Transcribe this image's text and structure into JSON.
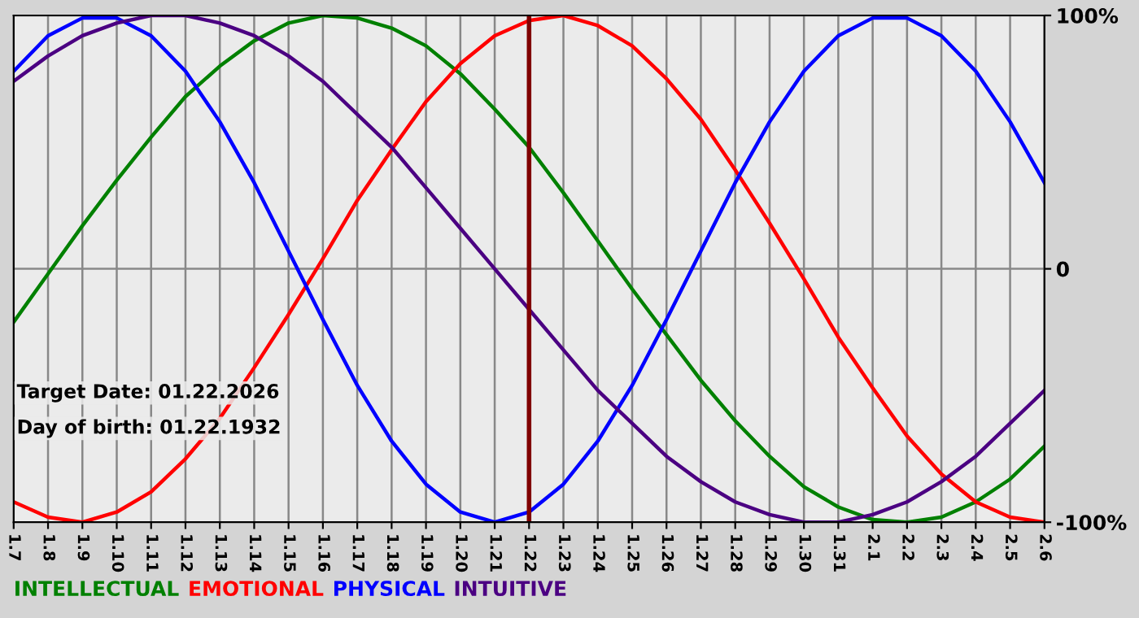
{
  "chart_data": {
    "type": "line",
    "categories": [
      "1.7",
      "1.8",
      "1.9",
      "1.10",
      "1.11",
      "1.12",
      "1.13",
      "1.14",
      "1.15",
      "1.16",
      "1.17",
      "1.18",
      "1.19",
      "1.20",
      "1.21",
      "1.22",
      "1.23",
      "1.24",
      "1.25",
      "1.26",
      "1.27",
      "1.28",
      "1.29",
      "1.30",
      "1.31",
      "2.1",
      "2.2",
      "2.3",
      "2.4",
      "2.5",
      "2.6"
    ],
    "series": [
      {
        "name": "INTELLECTUAL",
        "color": "#008000",
        "values": [
          -21,
          -2,
          17,
          35,
          52,
          68,
          80,
          90,
          97,
          100,
          99,
          95,
          88,
          77,
          63,
          48,
          30,
          11,
          -8,
          -26,
          -44,
          -60,
          -74,
          -86,
          -94,
          -99,
          -100,
          -98,
          -92,
          -83,
          -70
        ]
      },
      {
        "name": "EMOTIONAL",
        "color": "#ff0000",
        "values": [
          -92,
          -98,
          -100,
          -96,
          -88,
          -75,
          -59,
          -39,
          -18,
          4,
          27,
          47,
          66,
          81,
          92,
          98,
          100,
          96,
          88,
          75,
          59,
          39,
          18,
          -4,
          -27,
          -47,
          -66,
          -81,
          -92,
          -98,
          -100
        ]
      },
      {
        "name": "PHYSICAL",
        "color": "#0000ff",
        "values": [
          78,
          92,
          99,
          99,
          92,
          78,
          58,
          34,
          7,
          -20,
          -46,
          -68,
          -85,
          -96,
          -100,
          -96,
          -85,
          -68,
          -46,
          -20,
          7,
          34,
          58,
          78,
          92,
          99,
          99,
          92,
          78,
          58,
          34
        ]
      },
      {
        "name": "INTUITIVE",
        "color": "#4b0082",
        "values": [
          74,
          84,
          92,
          97,
          100,
          100,
          97,
          92,
          84,
          74,
          61,
          48,
          32,
          16,
          0,
          -16,
          -32,
          -48,
          -61,
          -74,
          -84,
          -92,
          -97,
          -100,
          -100,
          -97,
          -92,
          -84,
          -74,
          -61,
          -48
        ]
      }
    ],
    "ylim": [
      -100,
      100
    ],
    "yticks": [
      {
        "value": 100,
        "label": "100%"
      },
      0,
      {
        "value": -100,
        "label": "-100%"
      }
    ],
    "ref_lines": [
      {
        "axis": "x",
        "value": "1.22",
        "color": "#800000"
      }
    ],
    "annotations": [
      "Target Date: 01.22.2026",
      "Day of birth: 01.22.1932"
    ],
    "grid": true,
    "legend": "bottom",
    "line_style": "solid",
    "marker": "none"
  }
}
